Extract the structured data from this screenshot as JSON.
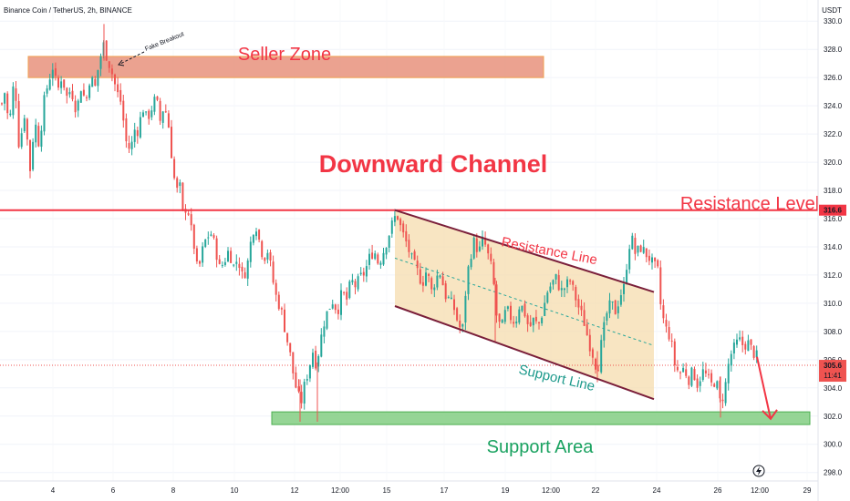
{
  "header": {
    "symbol_title": "Binance Coin / TetherUS, 2h, BINANCE",
    "currency": "USDT"
  },
  "colors": {
    "up": "#26a69a",
    "down": "#ef5350",
    "resistance": "#f23645",
    "seller_fill": "#e8927c",
    "support_fill": "#8ad08a",
    "channel_fill": "#f5dcae",
    "channel_line": "#7a1f3a",
    "green_text": "#1aa260",
    "teal_text": "#1e9a8c"
  },
  "chart_data": {
    "type": "candlestick",
    "title": "Binance Coin / TetherUS, 2h, BINANCE",
    "ylabel": "USDT",
    "ylim": [
      297.4,
      331.5
    ],
    "y_ticks": [
      298,
      300,
      302,
      304,
      306,
      308,
      310,
      312,
      314,
      316,
      318,
      320,
      322,
      324,
      326,
      328,
      330
    ],
    "x_ticks": [
      "4",
      "6",
      "8",
      "10",
      "12",
      "12:00",
      "15",
      "17",
      "19",
      "12:00",
      "22",
      "24",
      "26",
      "12:00",
      "29"
    ],
    "price_path": [
      [
        0,
        323.6
      ],
      [
        5,
        325
      ],
      [
        10,
        322.5
      ],
      [
        16,
        326.2
      ],
      [
        21,
        321
      ],
      [
        27,
        323.5
      ],
      [
        33,
        319.5
      ],
      [
        38,
        323
      ],
      [
        43,
        321.2
      ],
      [
        48,
        324.2
      ],
      [
        53,
        325.7
      ],
      [
        58,
        326.8
      ],
      [
        63,
        325
      ],
      [
        68,
        326.2
      ],
      [
        73,
        324.6
      ],
      [
        78,
        325.2
      ],
      [
        84,
        323.6
      ],
      [
        89,
        325.4
      ],
      [
        94,
        324.2
      ],
      [
        99,
        326.2
      ],
      [
        104,
        325.2
      ],
      [
        109,
        327.2
      ],
      [
        114,
        328.4
      ],
      [
        118,
        327.2
      ],
      [
        121,
        326.8
      ],
      [
        124,
        326
      ],
      [
        128,
        325
      ],
      [
        133,
        324.2
      ],
      [
        138,
        321.5
      ],
      [
        143,
        320.8
      ],
      [
        148,
        322.4
      ],
      [
        152,
        322.2
      ],
      [
        156,
        324
      ],
      [
        161,
        323
      ],
      [
        166,
        323.8
      ],
      [
        171,
        324.6
      ],
      [
        176,
        322.8
      ],
      [
        180,
        324.2
      ],
      [
        185,
        322.5
      ],
      [
        189,
        320
      ],
      [
        193,
        317.8
      ],
      [
        197,
        318.4
      ],
      [
        201,
        316
      ],
      [
        205,
        317.2
      ],
      [
        209,
        315.4
      ],
      [
        213,
        314
      ],
      [
        217,
        312
      ],
      [
        221,
        313.5
      ],
      [
        226,
        314.6
      ],
      [
        231,
        315
      ],
      [
        236,
        314
      ],
      [
        241,
        312.4
      ],
      [
        246,
        313
      ],
      [
        251,
        313.8
      ],
      [
        256,
        312.6
      ],
      [
        261,
        313.2
      ],
      [
        266,
        311.8
      ],
      [
        271,
        312.6
      ],
      [
        276,
        314.8
      ],
      [
        280,
        315.8
      ],
      [
        285,
        314.2
      ],
      [
        289,
        313.2
      ],
      [
        294,
        313.8
      ],
      [
        298,
        312
      ],
      [
        303,
        310.4
      ],
      [
        308,
        309.6
      ],
      [
        313,
        308
      ],
      [
        318,
        306.4
      ],
      [
        322,
        304.8
      ],
      [
        326,
        303.6
      ],
      [
        330,
        302.9
      ],
      [
        334,
        304.2
      ],
      [
        339,
        305.5
      ],
      [
        343,
        306.6
      ],
      [
        347,
        305.6
      ],
      [
        351,
        307.2
      ],
      [
        355,
        308.6
      ],
      [
        360,
        309.6
      ],
      [
        365,
        310.2
      ],
      [
        370,
        309.4
      ],
      [
        375,
        310.8
      ],
      [
        380,
        310.2
      ],
      [
        385,
        311.6
      ],
      [
        390,
        311.2
      ],
      [
        395,
        311.8
      ],
      [
        400,
        312.2
      ],
      [
        405,
        313.2
      ],
      [
        410,
        313.8
      ],
      [
        415,
        312.8
      ],
      [
        420,
        313.6
      ],
      [
        425,
        314.6
      ],
      [
        430,
        315.6
      ],
      [
        435,
        316.4
      ],
      [
        440,
        315.2
      ],
      [
        446,
        314.2
      ],
      [
        452,
        313
      ],
      [
        458,
        312.2
      ],
      [
        463,
        311.4
      ],
      [
        468,
        312.4
      ],
      [
        473,
        310.8
      ],
      [
        478,
        311.8
      ],
      [
        483,
        312.2
      ],
      [
        488,
        310.6
      ],
      [
        493,
        310.2
      ],
      [
        498,
        309.6
      ],
      [
        503,
        308.4
      ],
      [
        507,
        308
      ],
      [
        511,
        311.2
      ],
      [
        515,
        313.2
      ],
      [
        520,
        314.4
      ],
      [
        525,
        313.6
      ],
      [
        530,
        314.6
      ],
      [
        535,
        313.4
      ],
      [
        540,
        312.2
      ],
      [
        545,
        308.8
      ],
      [
        550,
        308.2
      ],
      [
        555,
        309.6
      ],
      [
        560,
        309
      ],
      [
        565,
        308.6
      ],
      [
        570,
        310
      ],
      [
        575,
        309.4
      ],
      [
        580,
        308.2
      ],
      [
        585,
        308.8
      ],
      [
        590,
        308.4
      ],
      [
        595,
        309.4
      ],
      [
        600,
        310.8
      ],
      [
        605,
        311.4
      ],
      [
        610,
        311.8
      ],
      [
        615,
        310.8
      ],
      [
        620,
        311.2
      ],
      [
        625,
        311.6
      ],
      [
        630,
        310.6
      ],
      [
        635,
        309.6
      ],
      [
        640,
        308.8
      ],
      [
        645,
        307.4
      ],
      [
        650,
        306.4
      ],
      [
        655,
        305.2
      ],
      [
        660,
        307.4
      ],
      [
        665,
        309.2
      ],
      [
        670,
        310
      ],
      [
        675,
        309.4
      ],
      [
        680,
        310.6
      ],
      [
        685,
        311.2
      ],
      [
        688,
        313.4
      ],
      [
        692,
        314.8
      ],
      [
        697,
        313.4
      ],
      [
        702,
        314
      ],
      [
        707,
        313.6
      ],
      [
        712,
        313.2
      ],
      [
        717,
        312.6
      ],
      [
        721,
        312.4
      ],
      [
        725,
        309.4
      ],
      [
        730,
        308.2
      ],
      [
        735,
        307.6
      ],
      [
        740,
        305.6
      ],
      [
        745,
        305
      ],
      [
        750,
        305.4
      ],
      [
        755,
        304.6
      ],
      [
        760,
        305.2
      ],
      [
        765,
        304.2
      ],
      [
        770,
        305.2
      ],
      [
        775,
        304.8
      ],
      [
        780,
        304.2
      ],
      [
        785,
        304.6
      ],
      [
        790,
        302.8
      ],
      [
        795,
        304
      ],
      [
        800,
        306.2
      ],
      [
        805,
        306.8
      ],
      [
        810,
        307.4
      ],
      [
        815,
        307
      ],
      [
        820,
        307.2
      ],
      [
        825,
        306.6
      ],
      [
        830,
        306.2
      ]
    ],
    "last_price": "305.6",
    "countdown": "11:41",
    "resistance_price": "316.6",
    "annotations": {
      "seller_zone": {
        "label": "Seller Zone",
        "price_range": [
          326.0,
          327.5
        ],
        "x_range": [
          31,
          596
        ]
      },
      "support_area": {
        "label": "Support Area",
        "price_range": [
          301.4,
          302.3
        ],
        "x_range": [
          298,
          888
        ]
      },
      "resistance_level": {
        "label": "Resistance Level",
        "price": 316.6
      },
      "title": "Downward Channel",
      "resistance_line": {
        "label": "Resistance Line",
        "from": [
          433,
          316.6
        ],
        "to": [
          717,
          310.8
        ]
      },
      "support_line": {
        "label": "Support Line",
        "from": [
          433,
          309.8
        ],
        "to": [
          717,
          303.2
        ]
      },
      "fake_breakout": "Fake Breakout",
      "arrow_from": [
        830,
        306.2
      ],
      "arrow_to": [
        845,
        301.8
      ]
    }
  }
}
